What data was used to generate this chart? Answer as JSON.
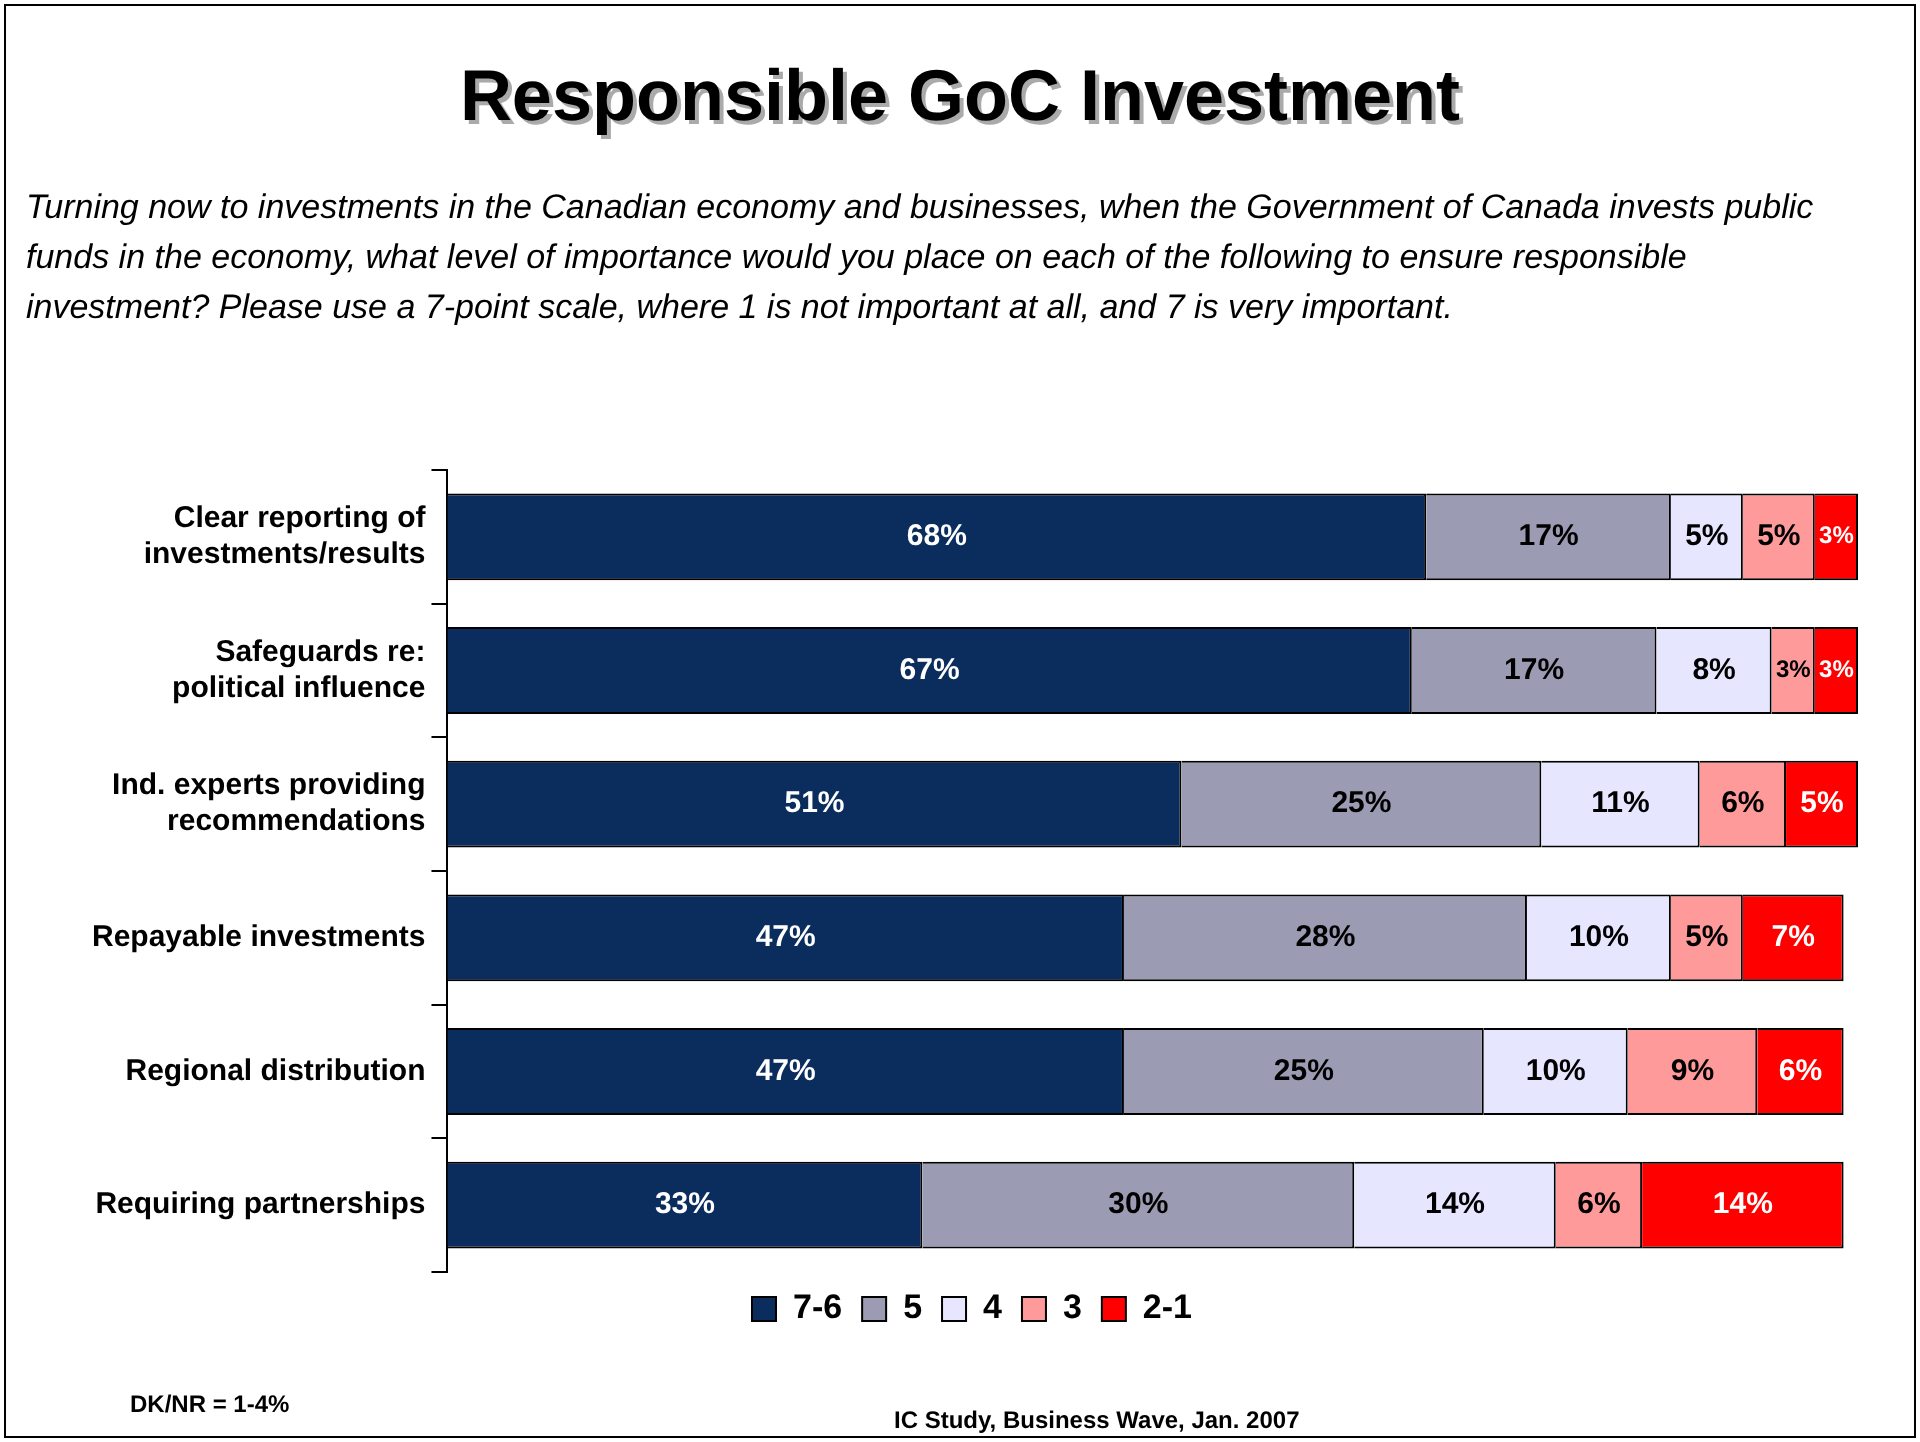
{
  "chart_data": {
    "type": "bar",
    "orientation": "horizontal",
    "stacked": true,
    "tick_labels": "y",
    "title": "Responsible GoC Investment",
    "subtitle": "Turning now to investments in the Canadian economy and businesses, when the Government of Canada invests public funds in the economy, what level of importance would you place on each of the following to ensure responsible investment? Please use a 7-point scale, where 1 is not important at all, and 7 is very important.",
    "categories": [
      "Clear reporting of investments/results",
      "Safeguards re: political influence",
      "Ind. experts providing recommendations",
      "Repayable investments",
      "Regional distribution",
      "Requiring partnerships"
    ],
    "series": [
      {
        "name": "7-6",
        "color": "#0b2d5e",
        "values": [
          68,
          67,
          51,
          47,
          47,
          33
        ],
        "value_labels": [
          "68%",
          "67%",
          "51%",
          "47%",
          "47%",
          "33%"
        ]
      },
      {
        "name": "5",
        "color": "#9b9bb3",
        "values": [
          17,
          17,
          25,
          28,
          25,
          30
        ],
        "value_labels": [
          "17%",
          "17%",
          "25%",
          "28%",
          "25%",
          "30%"
        ]
      },
      {
        "name": "4",
        "color": "#e6e6ff",
        "values": [
          5,
          8,
          11,
          10,
          10,
          14
        ],
        "value_labels": [
          "5%",
          "8%",
          "11%",
          "10%",
          "10%",
          "14%"
        ]
      },
      {
        "name": "3",
        "color": "#ff9a9a",
        "values": [
          5,
          3,
          6,
          5,
          9,
          6
        ],
        "value_labels": [
          "5%",
          "3%",
          "6%",
          "5%",
          "9%",
          "6%"
        ]
      },
      {
        "name": "2-1",
        "color": "#ff0000",
        "values": [
          3,
          3,
          5,
          7,
          6,
          14
        ],
        "value_labels": [
          "3%",
          "3%",
          "5%",
          "7%",
          "6%",
          "14%"
        ]
      }
    ],
    "legend": "bottom",
    "annotations": [
      "DK/NR = 1-4%",
      "IC Study, Business Wave, Jan. 2007"
    ]
  }
}
